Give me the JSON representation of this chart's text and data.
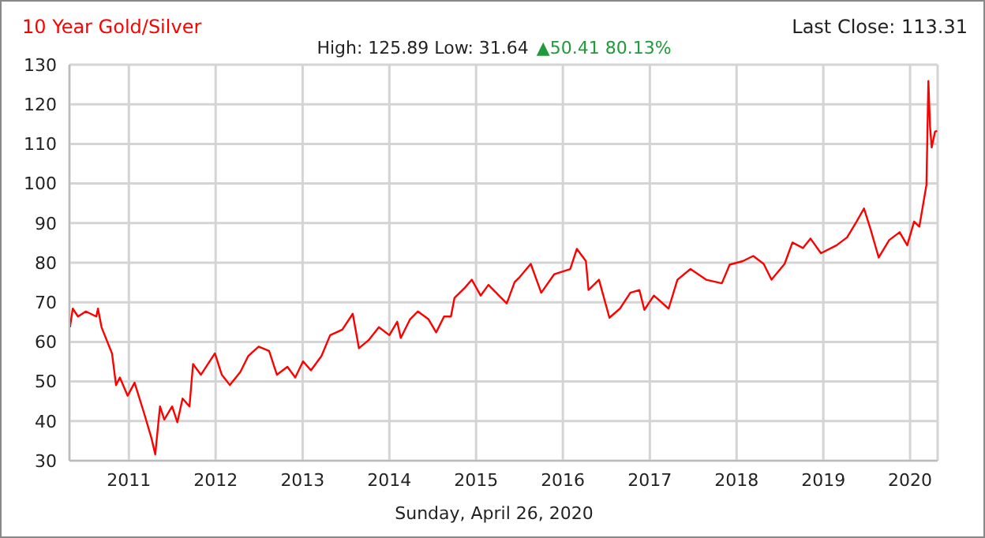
{
  "chart_data": {
    "type": "line",
    "title": "10 Year Gold/Silver",
    "subtitle": "High: 125.89 Low: 31.64",
    "annotations": [
      "Last Close: 113.31",
      "▲50.41 80.13%"
    ],
    "xlabel": "Sunday, April 26, 2020",
    "xlim": [
      "2010-04-26",
      "2020-04-26"
    ],
    "xticks": [
      {
        "value": "2011-01-01",
        "label": "2011"
      },
      {
        "value": "2012-01-01",
        "label": "2012"
      },
      {
        "value": "2013-01-01",
        "label": "2013"
      },
      {
        "value": "2014-01-01",
        "label": "2014"
      },
      {
        "value": "2015-01-01",
        "label": "2015"
      },
      {
        "value": "2016-01-01",
        "label": "2016"
      },
      {
        "value": "2017-01-01",
        "label": "2017"
      },
      {
        "value": "2018-01-01",
        "label": "2018"
      },
      {
        "value": "2019-01-01",
        "label": "2019"
      },
      {
        "value": "2020-01-01",
        "label": "2020"
      }
    ],
    "ylim": [
      30,
      130
    ],
    "yticks": [
      30,
      40,
      50,
      60,
      70,
      80,
      90,
      100,
      110,
      120,
      130
    ],
    "grid": true,
    "x": [
      "2010-04-28",
      "2010-05-10",
      "2010-06-01",
      "2010-07-04",
      "2010-08-17",
      "2010-08-24",
      "2010-09-08",
      "2010-10-22",
      "2010-11-08",
      "2010-11-24",
      "2010-12-27",
      "2011-01-25",
      "2011-03-04",
      "2011-04-06",
      "2011-04-22",
      "2011-05-12",
      "2011-05-30",
      "2011-07-02",
      "2011-07-24",
      "2011-08-15",
      "2011-09-13",
      "2011-09-28",
      "2011-10-31",
      "2011-12-29",
      "2012-01-27",
      "2012-03-01",
      "2012-04-14",
      "2012-05-17",
      "2012-06-30",
      "2012-08-13",
      "2012-09-15",
      "2012-10-29",
      "2012-12-01",
      "2013-01-03",
      "2013-02-05",
      "2013-03-21",
      "2013-04-27",
      "2013-06-17",
      "2013-07-31",
      "2013-08-26",
      "2013-10-05",
      "2013-11-18",
      "2014-01-01",
      "2014-02-03",
      "2014-02-18",
      "2014-03-29",
      "2014-05-01",
      "2014-06-15",
      "2014-07-17",
      "2014-08-19",
      "2014-09-17",
      "2014-10-02",
      "2014-11-15",
      "2014-12-14",
      "2015-01-20",
      "2015-02-22",
      "2015-04-07",
      "2015-05-10",
      "2015-06-12",
      "2015-07-04",
      "2015-08-19",
      "2015-10-02",
      "2015-11-26",
      "2016-02-01",
      "2016-02-29",
      "2016-04-07",
      "2016-04-18",
      "2016-06-01",
      "2016-07-15",
      "2016-08-28",
      "2016-10-11",
      "2016-11-18",
      "2016-12-09",
      "2017-01-18",
      "2017-03-21",
      "2017-04-27",
      "2017-06-21",
      "2017-08-26",
      "2017-10-31",
      "2017-12-03",
      "2018-01-27",
      "2018-03-12",
      "2018-04-25",
      "2018-05-28",
      "2018-07-22",
      "2018-08-24",
      "2018-10-07",
      "2018-11-08",
      "2018-12-22",
      "2019-02-26",
      "2019-04-11",
      "2019-05-21",
      "2019-06-21",
      "2019-07-19",
      "2019-08-22",
      "2019-10-05",
      "2019-11-18",
      "2019-12-20",
      "2020-01-18",
      "2020-02-09",
      "2020-03-10",
      "2020-03-18",
      "2020-03-25",
      "2020-04-01",
      "2020-04-15",
      "2020-04-24"
    ],
    "series": [
      {
        "color": "#ff0000",
        "values": [
          63.7,
          68.4,
          66.4,
          67.7,
          66.4,
          68.4,
          63.7,
          57.1,
          49.1,
          51,
          46.4,
          49.7,
          42.4,
          35.7,
          31.6,
          43.7,
          40.4,
          43.7,
          39.7,
          45.7,
          43.7,
          54.4,
          51.7,
          57.1,
          51.7,
          49.1,
          52.4,
          56.4,
          58.8,
          57.7,
          51.7,
          53.7,
          51,
          55.1,
          52.8,
          56.4,
          61.7,
          63.1,
          67.1,
          58.4,
          60.4,
          63.7,
          61.7,
          65.1,
          61,
          65.7,
          67.7,
          65.7,
          62.4,
          66.4,
          66.4,
          71.1,
          73.7,
          75.7,
          71.7,
          74.4,
          71.7,
          69.7,
          75.1,
          76.4,
          79.7,
          72.4,
          77.1,
          78.4,
          83.5,
          80.4,
          73.1,
          75.7,
          66.1,
          68.4,
          72.4,
          73.1,
          68.1,
          71.7,
          68.4,
          75.7,
          78.4,
          75.7,
          74.8,
          79.5,
          80.4,
          81.7,
          79.7,
          75.7,
          79.7,
          85.1,
          83.7,
          86.1,
          82.4,
          84.4,
          86.4,
          90.4,
          93.7,
          88.4,
          81.3,
          85.7,
          87.7,
          84.4,
          90.4,
          89.1,
          99.7,
          125.9,
          114.4,
          109.1,
          113.1,
          113.3
        ]
      }
    ]
  }
}
